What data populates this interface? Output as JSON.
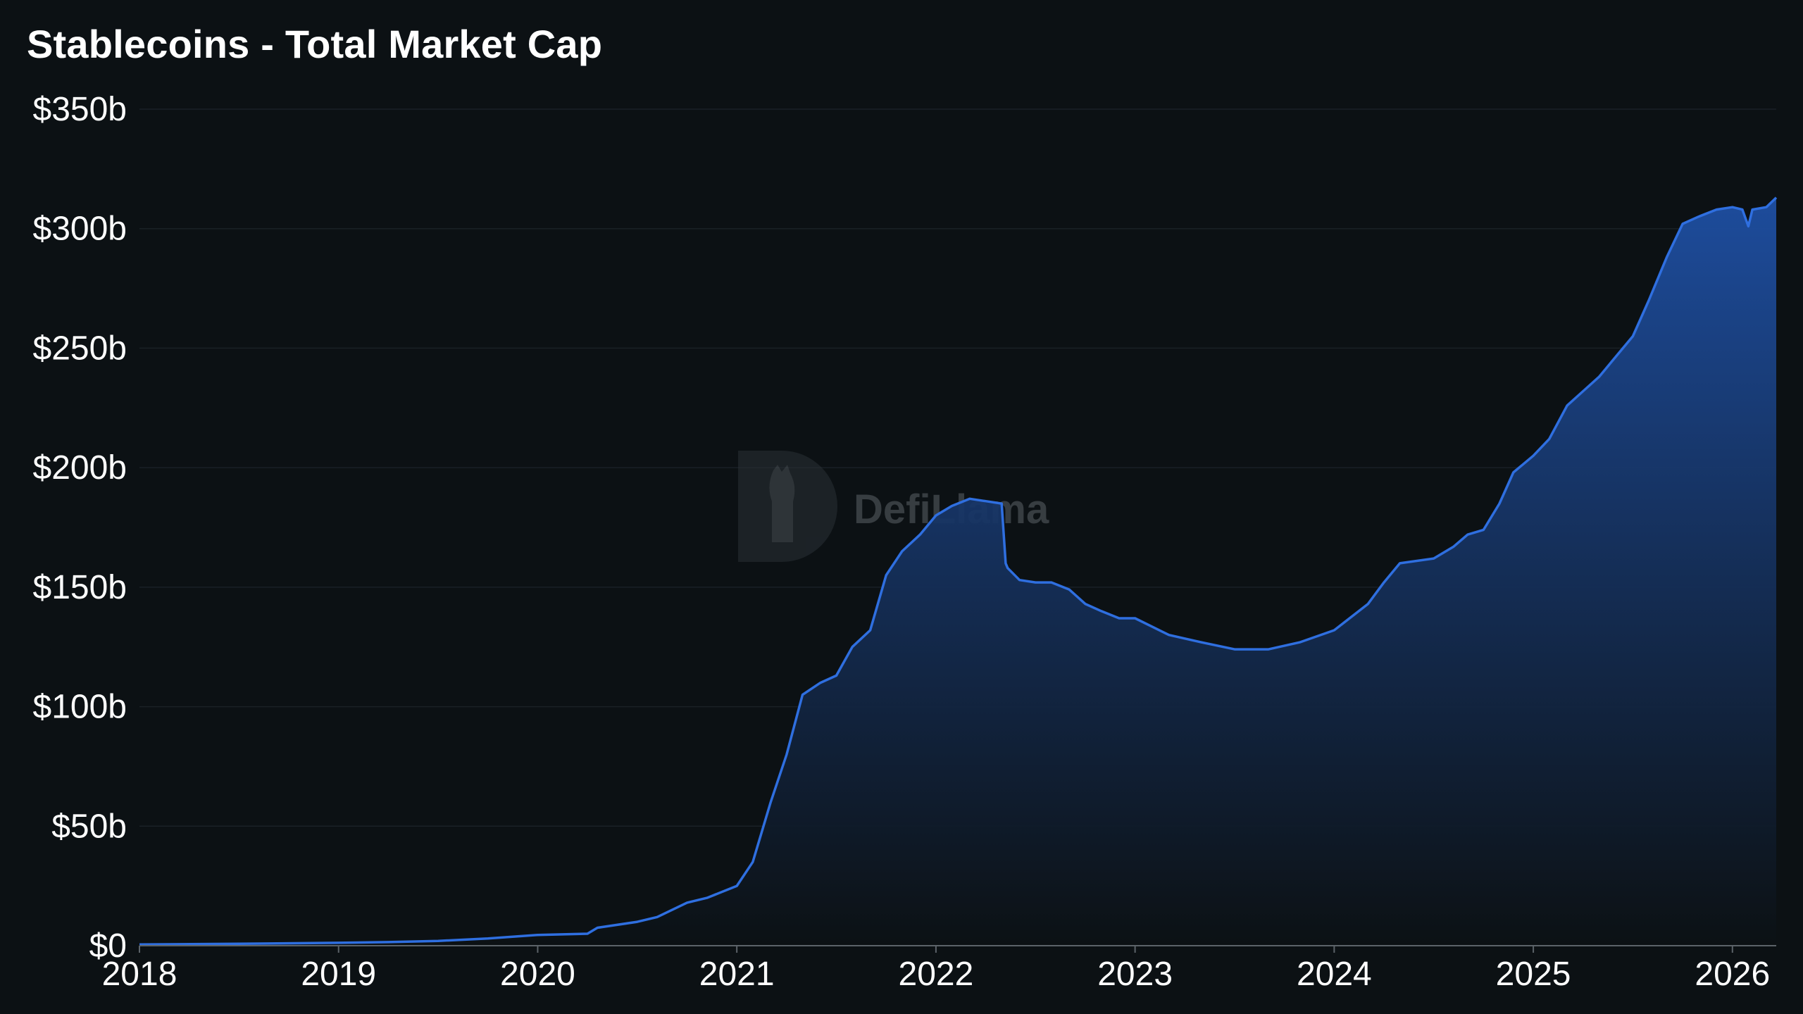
{
  "watermark": "DefiLlama",
  "chart_data": {
    "type": "area",
    "title": "Stablecoins - Total Market Cap",
    "xlabel": "",
    "ylabel": "",
    "ylim": [
      0,
      350
    ],
    "xlim": [
      2018.0,
      2026.22
    ],
    "y_ticks": [
      {
        "value": 0,
        "label": "$0"
      },
      {
        "value": 50,
        "label": "$50b"
      },
      {
        "value": 100,
        "label": "$100b"
      },
      {
        "value": 150,
        "label": "$150b"
      },
      {
        "value": 200,
        "label": "$200b"
      },
      {
        "value": 250,
        "label": "$250b"
      },
      {
        "value": 300,
        "label": "$300b"
      },
      {
        "value": 350,
        "label": "$350b"
      }
    ],
    "x_ticks": [
      {
        "value": 2018,
        "label": "2018"
      },
      {
        "value": 2019,
        "label": "2019"
      },
      {
        "value": 2020,
        "label": "2020"
      },
      {
        "value": 2021,
        "label": "2021"
      },
      {
        "value": 2022,
        "label": "2022"
      },
      {
        "value": 2023,
        "label": "2023"
      },
      {
        "value": 2024,
        "label": "2024"
      },
      {
        "value": 2025,
        "label": "2025"
      },
      {
        "value": 2026,
        "label": "2026"
      }
    ],
    "grid": true,
    "legend": "none",
    "colors": {
      "line": "#2f6fe0",
      "fill_top": "#1e4fa3",
      "fill_bottom": "#0c1114",
      "grid": "#1a2126",
      "axis": "#5c6369"
    },
    "series": [
      {
        "x": [
          2018.0,
          2018.5,
          2019.0,
          2019.25,
          2019.5,
          2019.75,
          2020.0,
          2020.25,
          2020.3,
          2020.5,
          2020.6,
          2020.75,
          2020.85,
          2021.0,
          2021.08,
          2021.17,
          2021.25,
          2021.33,
          2021.42,
          2021.5,
          2021.58,
          2021.67,
          2021.75,
          2021.83,
          2021.92,
          2022.0,
          2022.08,
          2022.17,
          2022.25,
          2022.33,
          2022.35,
          2022.36,
          2022.42,
          2022.5,
          2022.58,
          2022.67,
          2022.75,
          2022.83,
          2022.92,
          2023.0,
          2023.17,
          2023.33,
          2023.5,
          2023.67,
          2023.83,
          2024.0,
          2024.17,
          2024.25,
          2024.33,
          2024.5,
          2024.6,
          2024.67,
          2024.75,
          2024.83,
          2024.9,
          2025.0,
          2025.08,
          2025.17,
          2025.25,
          2025.33,
          2025.42,
          2025.5,
          2025.58,
          2025.67,
          2025.75,
          2025.83,
          2025.92,
          2026.0,
          2026.05,
          2026.08,
          2026.1,
          2026.17,
          2026.22
        ],
        "values": [
          0.5,
          0.8,
          1.2,
          1.5,
          2.0,
          3.0,
          4.5,
          5.0,
          7.5,
          10.0,
          12.0,
          18.0,
          20.0,
          25.0,
          35.0,
          60.0,
          80.0,
          105.0,
          110.0,
          113.0,
          125.0,
          132.0,
          155.0,
          165.0,
          172.0,
          180.0,
          184.0,
          187.0,
          186.0,
          185.0,
          160.0,
          158.0,
          153.0,
          152.0,
          152.0,
          149.0,
          143.0,
          140.0,
          137.0,
          137.0,
          130.0,
          127.0,
          124.0,
          124.0,
          127.0,
          132.0,
          143.0,
          152.0,
          160.0,
          162.0,
          167.0,
          172.0,
          174.0,
          185.0,
          198.0,
          205.0,
          212.0,
          226.0,
          232.0,
          238.0,
          247.0,
          255.0,
          270.0,
          288.0,
          302.0,
          305.0,
          308.0,
          309.0,
          308.0,
          301.0,
          308.0,
          309.0,
          313.0
        ]
      }
    ]
  }
}
